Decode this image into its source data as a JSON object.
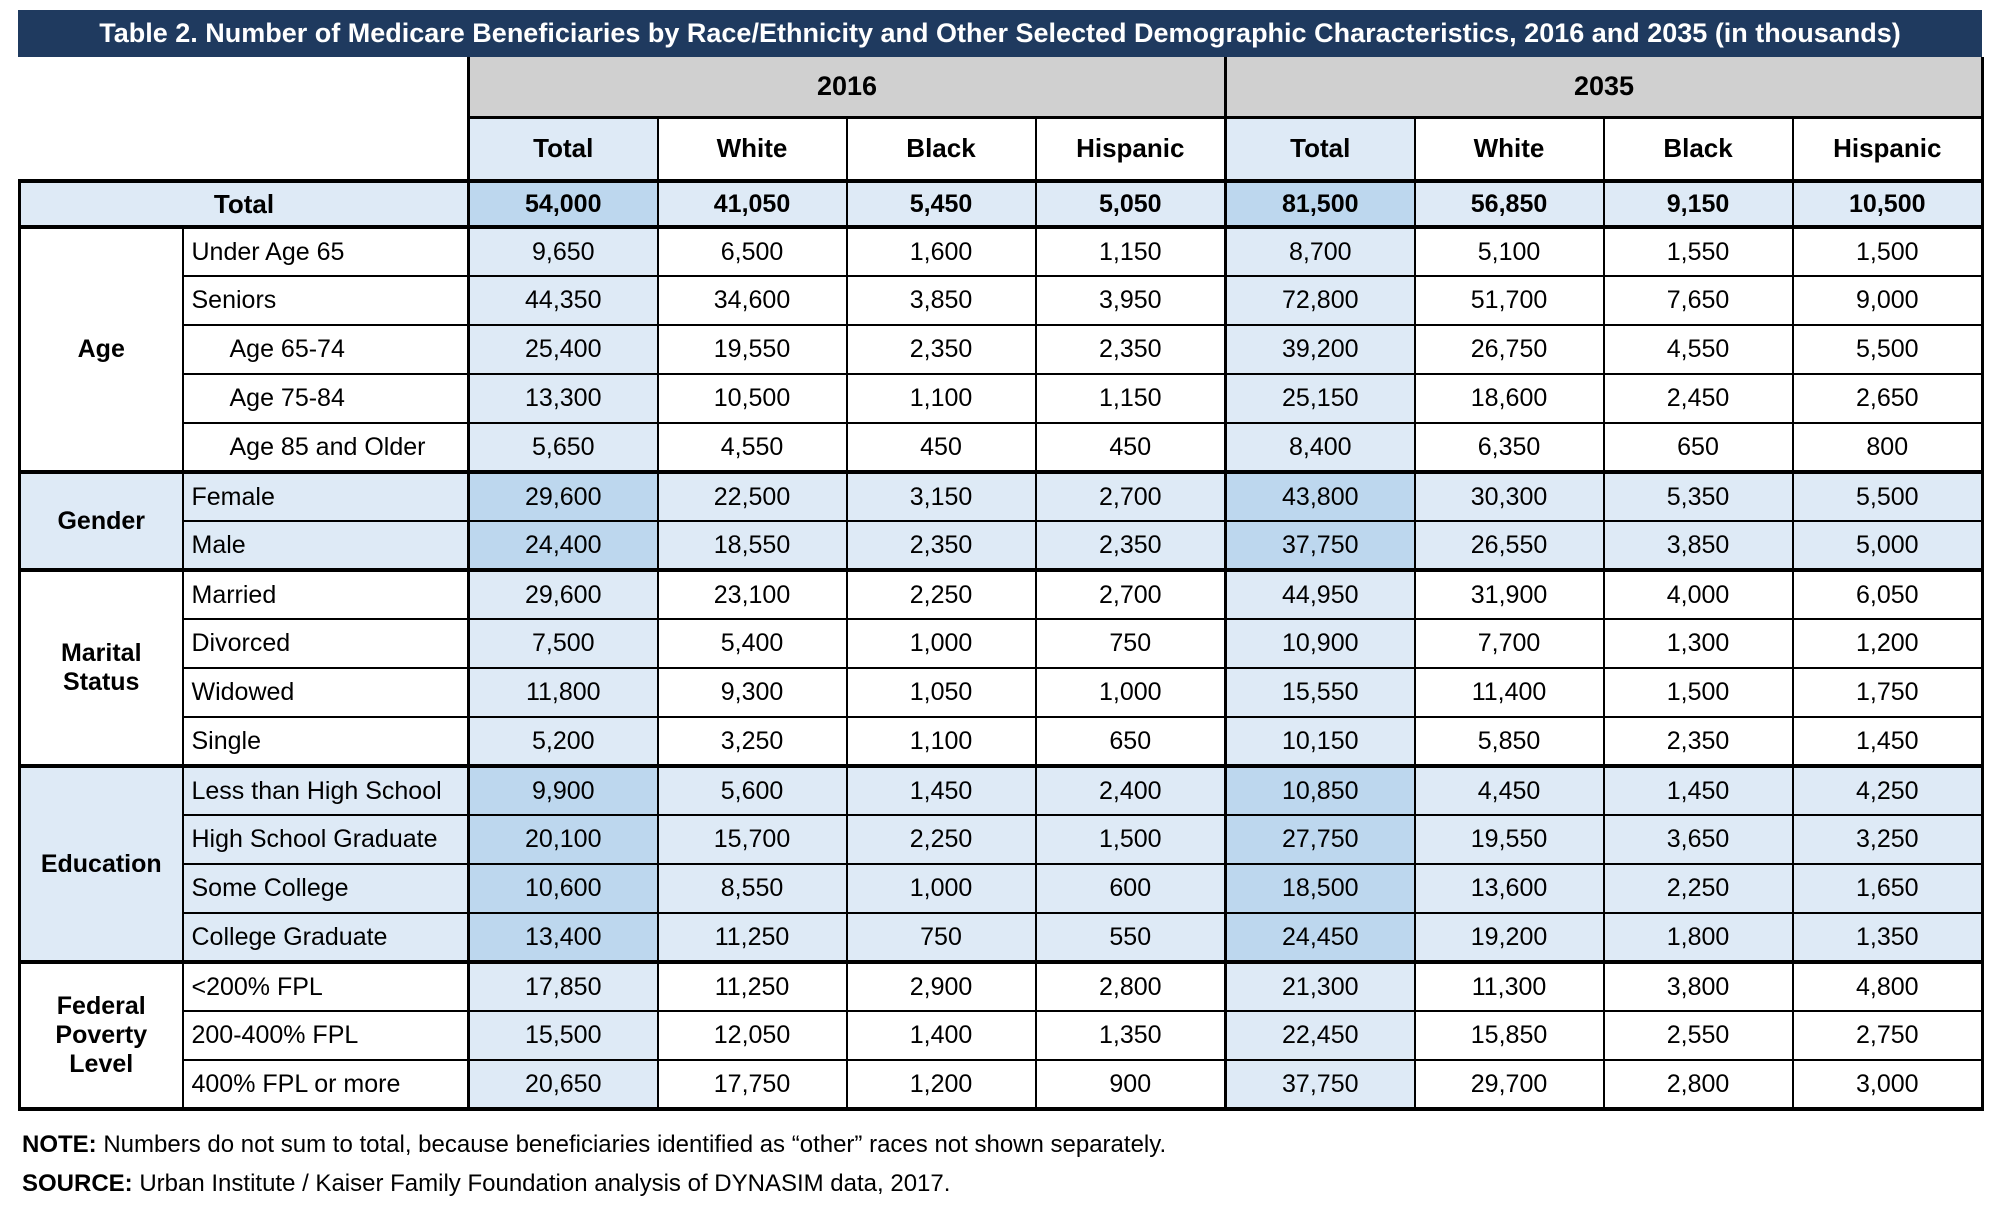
{
  "colors": {
    "header_navy": "#1F3A5F",
    "year_band_gray": "#D0D0D0",
    "light_blue": "#DEEAF6",
    "medium_blue": "#BDD7EE",
    "border": "#000000"
  },
  "note": {
    "label": "NOTE:",
    "text": "Numbers do not sum to total, because beneficiaries identified as “other” races not shown separately."
  },
  "source": {
    "label": "SOURCE:",
    "text": "Urban Institute / Kaiser Family Foundation analysis of DYNASIM data, 2017."
  },
  "chart_data": {
    "type": "table",
    "title": "Table 2. Number of Medicare Beneficiaries by Race/Ethnicity and Other Selected Demographic Characteristics, 2016 and 2035 (in thousands)",
    "units": "thousands",
    "year_groups": [
      "2016",
      "2035"
    ],
    "race_columns": [
      "Total",
      "White",
      "Black",
      "Hispanic"
    ],
    "column_order": [
      "2016 Total",
      "2016 White",
      "2016 Black",
      "2016 Hispanic",
      "2035 Total",
      "2035 White",
      "2035 Black",
      "2035 Hispanic"
    ],
    "total_row": {
      "label": "Total",
      "values": [
        "54,000",
        "41,050",
        "5,450",
        "5,050",
        "81,500",
        "56,850",
        "9,150",
        "10,500"
      ]
    },
    "bands": [
      {
        "group": "Age",
        "shaded": false,
        "rows": [
          {
            "label": "Under Age 65",
            "indent": false,
            "values": [
              "9,650",
              "6,500",
              "1,600",
              "1,150",
              "8,700",
              "5,100",
              "1,550",
              "1,500"
            ]
          },
          {
            "label": "Seniors",
            "indent": false,
            "values": [
              "44,350",
              "34,600",
              "3,850",
              "3,950",
              "72,800",
              "51,700",
              "7,650",
              "9,000"
            ]
          },
          {
            "label": "Age 65-74",
            "indent": true,
            "values": [
              "25,400",
              "19,550",
              "2,350",
              "2,350",
              "39,200",
              "26,750",
              "4,550",
              "5,500"
            ]
          },
          {
            "label": "Age 75-84",
            "indent": true,
            "values": [
              "13,300",
              "10,500",
              "1,100",
              "1,150",
              "25,150",
              "18,600",
              "2,450",
              "2,650"
            ]
          },
          {
            "label": "Age 85 and Older",
            "indent": true,
            "values": [
              "5,650",
              "4,550",
              "450",
              "450",
              "8,400",
              "6,350",
              "650",
              "800"
            ]
          }
        ]
      },
      {
        "group": "Gender",
        "shaded": true,
        "rows": [
          {
            "label": "Female",
            "indent": false,
            "values": [
              "29,600",
              "22,500",
              "3,150",
              "2,700",
              "43,800",
              "30,300",
              "5,350",
              "5,500"
            ]
          },
          {
            "label": "Male",
            "indent": false,
            "values": [
              "24,400",
              "18,550",
              "2,350",
              "2,350",
              "37,750",
              "26,550",
              "3,850",
              "5,000"
            ]
          }
        ]
      },
      {
        "group": "Marital Status",
        "shaded": false,
        "rows": [
          {
            "label": "Married",
            "indent": false,
            "values": [
              "29,600",
              "23,100",
              "2,250",
              "2,700",
              "44,950",
              "31,900",
              "4,000",
              "6,050"
            ]
          },
          {
            "label": "Divorced",
            "indent": false,
            "values": [
              "7,500",
              "5,400",
              "1,000",
              "750",
              "10,900",
              "7,700",
              "1,300",
              "1,200"
            ]
          },
          {
            "label": "Widowed",
            "indent": false,
            "values": [
              "11,800",
              "9,300",
              "1,050",
              "1,000",
              "15,550",
              "11,400",
              "1,500",
              "1,750"
            ]
          },
          {
            "label": "Single",
            "indent": false,
            "values": [
              "5,200",
              "3,250",
              "1,100",
              "650",
              "10,150",
              "5,850",
              "2,350",
              "1,450"
            ]
          }
        ]
      },
      {
        "group": "Education",
        "shaded": true,
        "rows": [
          {
            "label": "Less than High School",
            "indent": false,
            "values": [
              "9,900",
              "5,600",
              "1,450",
              "2,400",
              "10,850",
              "4,450",
              "1,450",
              "4,250"
            ]
          },
          {
            "label": "High School Graduate",
            "indent": false,
            "values": [
              "20,100",
              "15,700",
              "2,250",
              "1,500",
              "27,750",
              "19,550",
              "3,650",
              "3,250"
            ]
          },
          {
            "label": "Some College",
            "indent": false,
            "values": [
              "10,600",
              "8,550",
              "1,000",
              "600",
              "18,500",
              "13,600",
              "2,250",
              "1,650"
            ]
          },
          {
            "label": "College Graduate",
            "indent": false,
            "values": [
              "13,400",
              "11,250",
              "750",
              "550",
              "24,450",
              "19,200",
              "1,800",
              "1,350"
            ]
          }
        ]
      },
      {
        "group": "Federal Poverty Level",
        "shaded": false,
        "rows": [
          {
            "label": "<200% FPL",
            "indent": false,
            "values": [
              "17,850",
              "11,250",
              "2,900",
              "2,800",
              "21,300",
              "11,300",
              "3,800",
              "4,800"
            ]
          },
          {
            "label": "200-400% FPL",
            "indent": false,
            "values": [
              "15,500",
              "12,050",
              "1,400",
              "1,350",
              "22,450",
              "15,850",
              "2,550",
              "2,750"
            ]
          },
          {
            "label": "400% FPL or more",
            "indent": false,
            "values": [
              "20,650",
              "17,750",
              "1,200",
              "900",
              "37,750",
              "29,700",
              "2,800",
              "3,000"
            ]
          }
        ]
      }
    ]
  }
}
